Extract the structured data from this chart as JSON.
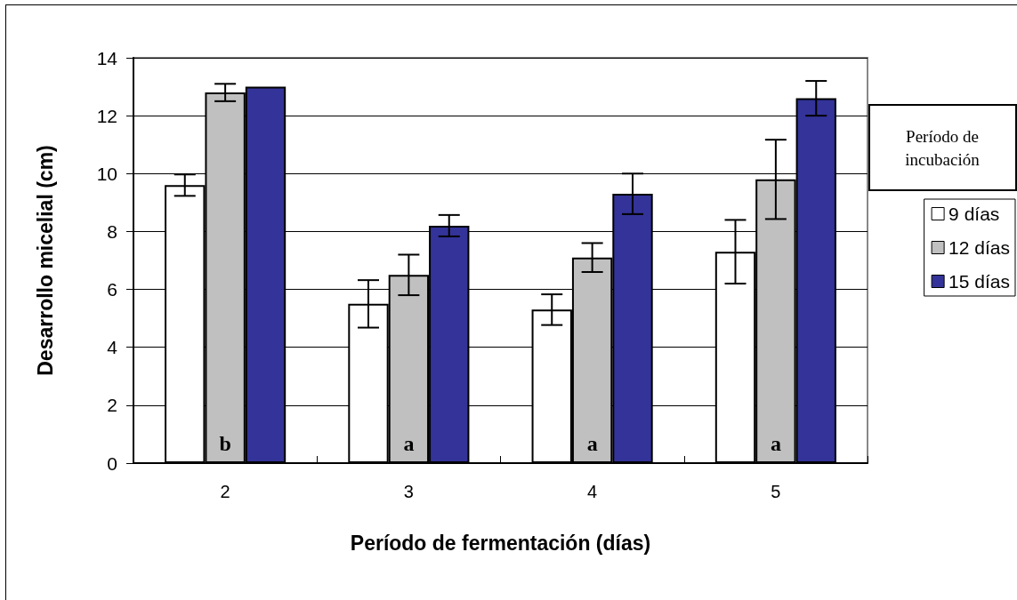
{
  "chart_data": {
    "type": "bar",
    "xlabel": "Período de fermentación (días)",
    "ylabel": "Desarrollo micelial (cm)",
    "legend_title": "Período de incubación",
    "categories": [
      "2",
      "3",
      "4",
      "5"
    ],
    "series": [
      {
        "name": "9 días",
        "color": "#ffffff",
        "values": [
          9.6,
          5.5,
          5.3,
          7.3
        ],
        "errors": [
          0.37,
          0.82,
          0.53,
          1.1
        ]
      },
      {
        "name": "12 días",
        "color": "#c0c0c0",
        "values": [
          12.8,
          6.5,
          7.1,
          9.8
        ],
        "errors": [
          0.3,
          0.7,
          0.5,
          1.37
        ]
      },
      {
        "name": "15 días",
        "color": "#333399",
        "values": [
          13.0,
          8.2,
          9.3,
          12.6
        ],
        "errors": [
          null,
          0.37,
          0.7,
          0.6
        ]
      }
    ],
    "annotations": [
      "b",
      "a",
      "a",
      "a"
    ],
    "ylim": [
      0,
      14
    ],
    "yticks": [
      0,
      2,
      4,
      6,
      8,
      10,
      12,
      14
    ],
    "grid": "y",
    "legend": "right"
  }
}
